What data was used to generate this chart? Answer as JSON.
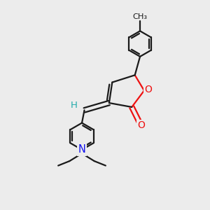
{
  "background_color": "#ececec",
  "bond_color": "#1a1a1a",
  "oxygen_color": "#ee1111",
  "nitrogen_color": "#1111ee",
  "hydrogen_color": "#22aaaa",
  "line_width": 1.6,
  "figsize": [
    3.0,
    3.0
  ],
  "dpi": 100,
  "xlim": [
    0,
    10
  ],
  "ylim": [
    0,
    10
  ]
}
